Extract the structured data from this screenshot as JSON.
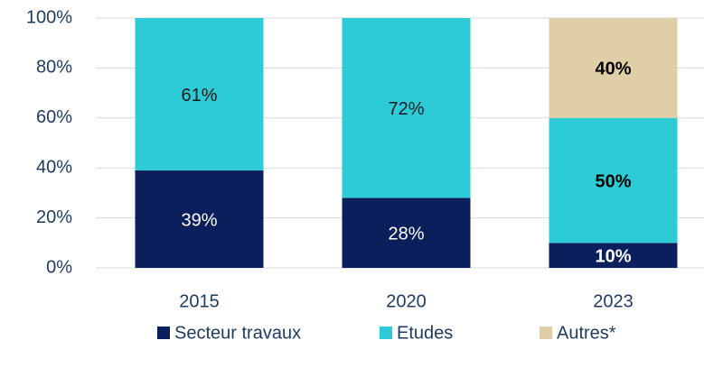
{
  "chart_data": {
    "type": "stacked_bar",
    "categories": [
      "2015",
      "2020",
      "2023"
    ],
    "series": [
      {
        "name": "Secteur travaux",
        "color": "#0b1f5c",
        "values": [
          39,
          28,
          10
        ],
        "value_labels": [
          "39%",
          "28%",
          "10%"
        ]
      },
      {
        "name": "Etudes",
        "color": "#2ccbd6",
        "values": [
          61,
          72,
          50
        ],
        "value_labels": [
          "61%",
          "72%",
          "50%"
        ]
      },
      {
        "name": "Autres*",
        "color": "#e0cfa6",
        "values": [
          null,
          null,
          40
        ],
        "value_labels": [
          null,
          null,
          "40%"
        ]
      }
    ],
    "ylim": [
      0,
      100
    ],
    "yticks": [
      {
        "value": 0,
        "label": "0%"
      },
      {
        "value": 20,
        "label": "20%"
      },
      {
        "value": 40,
        "label": "40%"
      },
      {
        "value": 60,
        "label": "60%"
      },
      {
        "value": 80,
        "label": "80%"
      },
      {
        "value": 100,
        "label": "100%"
      }
    ],
    "grid": true,
    "legend": "bottom"
  }
}
